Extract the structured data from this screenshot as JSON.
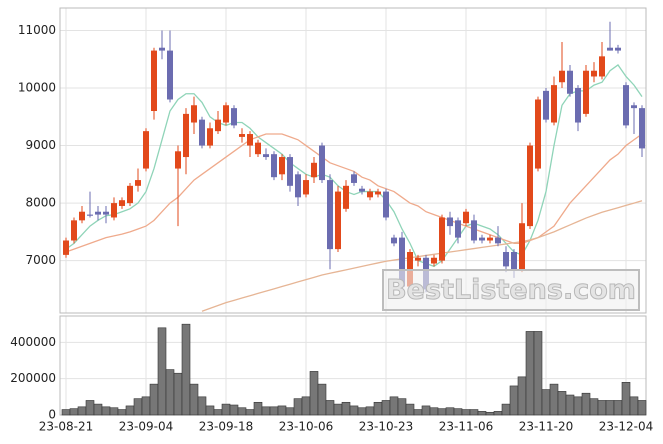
{
  "chart_data": [
    {
      "type": "candlestick",
      "open": [
        7100,
        7350,
        7700,
        7800,
        7850,
        7850,
        7750,
        7950,
        8000,
        8300,
        8600,
        9600,
        10700,
        10650,
        8600,
        8800,
        9400,
        9450,
        9000,
        9250,
        9400,
        9650,
        9150,
        9000,
        8850,
        8850,
        8850,
        8500,
        8800,
        8500,
        8150,
        8450,
        9000,
        8400,
        7200,
        7900,
        8500,
        8250,
        8100,
        8150,
        8200,
        7400,
        7400,
        6550,
        7000,
        7050,
        6950,
        7000,
        7750,
        7700,
        7650,
        7700,
        7400,
        7350,
        7400,
        7150,
        7150,
        6850,
        7600,
        8600,
        9950,
        9400,
        10100,
        10300,
        10000,
        9550,
        10200,
        10200,
        10700,
        10700,
        10050,
        9700,
        9650
      ],
      "high": [
        7400,
        7750,
        7950,
        8200,
        7950,
        7950,
        8100,
        8100,
        8350,
        8600,
        9300,
        10700,
        11000,
        11000,
        9000,
        9650,
        9850,
        9500,
        9400,
        9600,
        9750,
        9700,
        9300,
        9250,
        9100,
        8950,
        8900,
        8850,
        8850,
        8550,
        8500,
        8800,
        9050,
        8500,
        8300,
        8400,
        8550,
        8300,
        8250,
        8250,
        8250,
        7450,
        7500,
        7200,
        7100,
        7100,
        7100,
        7800,
        7850,
        7750,
        7900,
        7800,
        7450,
        7450,
        7600,
        7250,
        7200,
        8000,
        9050,
        9850,
        10000,
        10200,
        10800,
        10400,
        10050,
        10400,
        10450,
        10800,
        11150,
        10750,
        10100,
        9750,
        9700
      ],
      "low": [
        7050,
        7300,
        7650,
        7750,
        7700,
        7650,
        7700,
        7900,
        7950,
        8200,
        8550,
        9450,
        10500,
        9750,
        7600,
        8500,
        9200,
        8950,
        8950,
        9200,
        9350,
        9300,
        9050,
        8800,
        8800,
        8750,
        8400,
        8400,
        8200,
        7950,
        8100,
        8350,
        8350,
        6850,
        7150,
        7850,
        8300,
        8150,
        8050,
        8100,
        7700,
        7250,
        6450,
        6500,
        6900,
        6450,
        6900,
        6950,
        7450,
        7300,
        7600,
        7300,
        7300,
        7300,
        7250,
        6800,
        6700,
        6800,
        7550,
        8550,
        9400,
        9350,
        10000,
        9850,
        9250,
        9500,
        10100,
        10150,
        10650,
        10600,
        9300,
        9200,
        8800
      ],
      "close": [
        7350,
        7700,
        7850,
        7780,
        7800,
        7800,
        8000,
        8050,
        8300,
        8400,
        9250,
        10650,
        10650,
        9800,
        8900,
        9550,
        9700,
        9000,
        9300,
        9450,
        9700,
        9350,
        9200,
        9200,
        9050,
        8800,
        8450,
        8800,
        8300,
        8100,
        8400,
        8700,
        8400,
        7200,
        8200,
        8300,
        8350,
        8200,
        8200,
        8200,
        7750,
        7300,
        6550,
        7150,
        7050,
        6500,
        7050,
        7750,
        7600,
        7400,
        7850,
        7350,
        7350,
        7400,
        7300,
        6900,
        6850,
        7650,
        9000,
        9800,
        9450,
        10050,
        10300,
        9900,
        9400,
        10300,
        10300,
        10550,
        10650,
        10650,
        9350,
        9650,
        8950
      ],
      "up_color": "#e2491b",
      "down_color": "#6b6cb0",
      "lines": [
        {
          "color": "#8fd4b8",
          "values": [
            7200,
            7300,
            7450,
            7600,
            7700,
            7780,
            7800,
            7850,
            7900,
            8000,
            8200,
            8600,
            9100,
            9600,
            9800,
            9900,
            9900,
            9750,
            9500,
            9400,
            9350,
            9400,
            9400,
            9300,
            9150,
            9050,
            8950,
            8850,
            8700,
            8600,
            8500,
            8450,
            8500,
            8450,
            8300,
            8200,
            8150,
            8200,
            8200,
            8200,
            8050,
            7850,
            7550,
            7300,
            7000,
            6950,
            6900,
            7000,
            7200,
            7400,
            7600,
            7650,
            7600,
            7550,
            7450,
            7300,
            7150,
            7100,
            7350,
            7700,
            8200,
            9000,
            9700,
            9900,
            9950,
            9950,
            10050,
            10100,
            10300,
            10400,
            10200,
            10050,
            9850
          ]
        },
        {
          "color": "#efaa8c",
          "values": [
            7150,
            7200,
            7250,
            7300,
            7350,
            7400,
            7430,
            7460,
            7500,
            7550,
            7600,
            7700,
            7850,
            8000,
            8100,
            8250,
            8400,
            8500,
            8600,
            8700,
            8800,
            8900,
            9000,
            9100,
            9150,
            9200,
            9200,
            9200,
            9150,
            9100,
            9000,
            8900,
            8800,
            8700,
            8650,
            8600,
            8550,
            8450,
            8400,
            8300,
            8250,
            8200,
            8100,
            8000,
            7950,
            7850,
            7800,
            7750,
            7700,
            7650,
            7600,
            7550,
            7500,
            7450,
            7400,
            7350,
            7300,
            7300,
            7350,
            7400,
            7500,
            7600,
            7800,
            8000,
            8150,
            8300,
            8450,
            8600,
            8750,
            8850,
            9000,
            9100,
            9200
          ]
        },
        {
          "color": "#e6b595",
          "values": [
            null,
            null,
            null,
            null,
            null,
            null,
            null,
            null,
            null,
            null,
            null,
            null,
            null,
            null,
            null,
            null,
            null,
            6120,
            6170,
            6220,
            6270,
            6310,
            6350,
            6390,
            6430,
            6470,
            6510,
            6550,
            6590,
            6630,
            6670,
            6710,
            6750,
            6780,
            6810,
            6840,
            6870,
            6900,
            6930,
            6960,
            6990,
            7010,
            7030,
            7050,
            7070,
            7090,
            7110,
            7130,
            7150,
            7170,
            7190,
            7210,
            7230,
            7250,
            7270,
            7290,
            7310,
            7330,
            7360,
            7400,
            7450,
            7500,
            7560,
            7620,
            7680,
            7740,
            7790,
            7840,
            7880,
            7920,
            7960,
            8000,
            8040
          ]
        }
      ],
      "ylim": [
        6090,
        11390
      ],
      "yticks": [
        7000,
        8000,
        9000,
        10000,
        11000
      ],
      "grid": true,
      "watermark": "BestListens.com"
    },
    {
      "type": "bar",
      "categories": [
        "23-08-21",
        null,
        null,
        null,
        null,
        null,
        null,
        null,
        null,
        null,
        "23-09-04",
        null,
        null,
        null,
        null,
        null,
        null,
        null,
        null,
        null,
        "23-09-18",
        null,
        null,
        null,
        null,
        null,
        null,
        null,
        null,
        null,
        "23-10-06",
        null,
        null,
        null,
        null,
        null,
        null,
        null,
        null,
        null,
        "23-10-23",
        null,
        null,
        null,
        null,
        null,
        null,
        null,
        null,
        null,
        "23-11-06",
        null,
        null,
        null,
        null,
        null,
        null,
        null,
        null,
        null,
        "23-11-20",
        null,
        null,
        null,
        null,
        null,
        null,
        null,
        null,
        null,
        "23-12-04",
        null,
        null
      ],
      "values": [
        30000,
        35000,
        45000,
        80000,
        60000,
        45000,
        40000,
        30000,
        50000,
        90000,
        100000,
        170000,
        480000,
        250000,
        230000,
        500000,
        170000,
        100000,
        50000,
        30000,
        60000,
        55000,
        40000,
        30000,
        70000,
        45000,
        45000,
        50000,
        40000,
        90000,
        100000,
        240000,
        170000,
        80000,
        60000,
        70000,
        50000,
        40000,
        45000,
        70000,
        80000,
        100000,
        90000,
        60000,
        30000,
        50000,
        40000,
        35000,
        40000,
        35000,
        30000,
        30000,
        20000,
        15000,
        20000,
        60000,
        160000,
        210000,
        460000,
        460000,
        140000,
        170000,
        130000,
        110000,
        100000,
        120000,
        90000,
        80000,
        80000,
        80000,
        180000,
        100000,
        80000
      ],
      "color": "#777777",
      "ylim": [
        0,
        545000
      ],
      "yticks": [
        0,
        200000,
        400000
      ],
      "grid": true
    }
  ]
}
